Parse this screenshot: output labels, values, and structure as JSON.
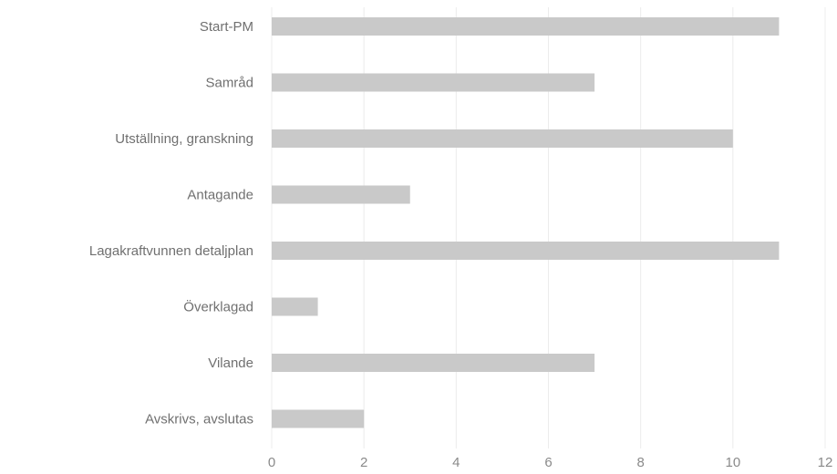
{
  "chart_data": {
    "type": "bar",
    "orientation": "horizontal",
    "title": "",
    "xlabel": "",
    "ylabel": "",
    "categories": [
      "Start-PM",
      "Samråd",
      "Utställning, granskning",
      "Antagande",
      "Lagakraftvunnen detaljplan",
      "Överklagad",
      "Vilande",
      "Avskrivs, avslutas"
    ],
    "values": [
      11,
      7,
      10,
      3,
      11,
      1,
      7,
      2
    ],
    "xlim": [
      0,
      12
    ],
    "x_ticks": [
      "0",
      "2",
      "4",
      "6",
      "8",
      "10",
      "12"
    ],
    "grid": true,
    "legend": "none",
    "bar_color": "#c9c9c9",
    "grid_color": "#ececec",
    "label_color": "#707070"
  }
}
